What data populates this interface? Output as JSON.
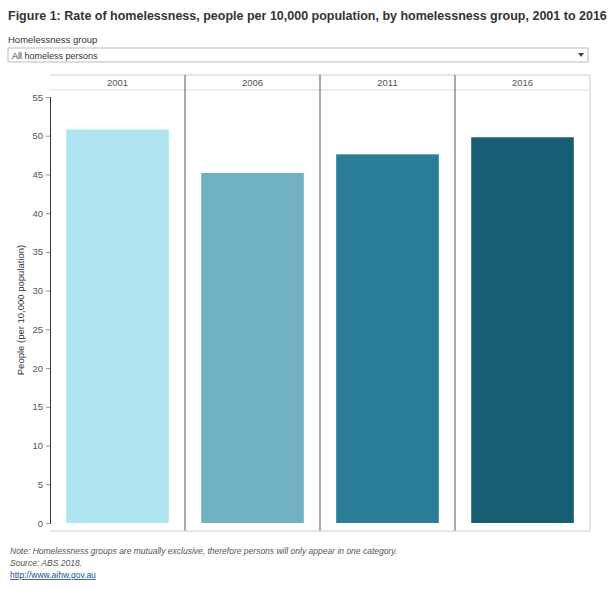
{
  "chart_data": {
    "type": "bar",
    "title": "Figure 1: Rate of homelessness, people per 10,000 population, by homelessness group, 2001 to 2016",
    "filter_label": "Homelessness group",
    "filter_value": "All homeless persons",
    "y_label": "People (per 10,000 population)",
    "categories": [
      "2001",
      "2006",
      "2011",
      "2016"
    ],
    "values": [
      50.8,
      45.2,
      47.6,
      49.8
    ],
    "colors": [
      "#ade4ef",
      "#70b1c2",
      "#2a7e98",
      "#185e73"
    ],
    "ylim": [
      0,
      55
    ],
    "yticks": [
      0,
      5,
      10,
      15,
      20,
      25,
      30,
      35,
      40,
      45,
      50,
      55
    ],
    "grid": false,
    "note": "Note: Homelessness groups are mutually exclusive, therefore persons will only appear in one category.",
    "source": "Source: ABS 2018.",
    "url": "http://www.aihw.gov.au"
  }
}
